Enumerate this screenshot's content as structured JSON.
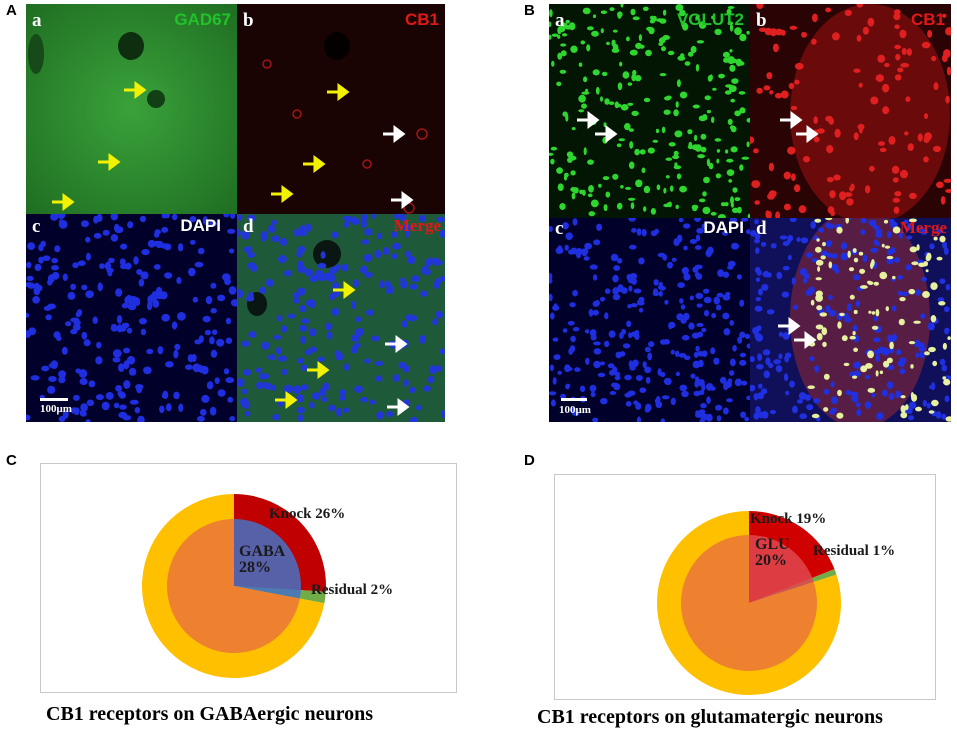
{
  "panels": {
    "A": {
      "letter": "A",
      "tiles": {
        "a": {
          "sub": "a",
          "label": "GAD67",
          "label_color": "#22c22a"
        },
        "b": {
          "sub": "b",
          "label": "CB1",
          "label_color": "#e01818"
        },
        "c": {
          "sub": "c",
          "label": "DAPI",
          "label_color": "#ffffff"
        },
        "d": {
          "sub": "d",
          "label": "Merge",
          "label_color": "#e01818"
        }
      },
      "scale_bar": "100μm"
    },
    "B": {
      "letter": "B",
      "tiles": {
        "a": {
          "sub": "a",
          "label": "VGLUT2",
          "label_color": "#22c22a"
        },
        "b": {
          "sub": "b",
          "label": "CB1",
          "label_color": "#e01818"
        },
        "c": {
          "sub": "c",
          "label": "DAPI",
          "label_color": "#ffffff"
        },
        "d": {
          "sub": "d",
          "label": "Merge",
          "label_color": "#e01818"
        }
      },
      "scale_bar": "100μm"
    },
    "C": {
      "letter": "C",
      "caption": "CB1 receptors on GABAergic neurons"
    },
    "D": {
      "letter": "D",
      "caption": "CB1 receptors on glutamatergic neurons"
    }
  },
  "chart_data": [
    {
      "type": "pie",
      "panel": "C",
      "title": "CB1 receptors on GABAergic neurons",
      "outer_ring": [
        {
          "label": "Knock",
          "value": 26,
          "display": "Knock 26%",
          "color": "#c00000"
        },
        {
          "label": "Residual",
          "value": 2,
          "display": "Residual 2%",
          "color": "#70ad47"
        },
        {
          "label": "",
          "value": 72,
          "color": "#ffc000"
        }
      ],
      "inner_pie": [
        {
          "label": "GABA",
          "value": 28,
          "display": [
            "GABA",
            "28%"
          ],
          "color": "#4472c4"
        },
        {
          "label": "",
          "value": 72,
          "color": "#ed7d31"
        }
      ]
    },
    {
      "type": "pie",
      "panel": "D",
      "title": "CB1 receptors on glutamatergic neurons",
      "outer_ring": [
        {
          "label": "Knock",
          "value": 19,
          "display": "Knock 19%",
          "color": "#d00000"
        },
        {
          "label": "Residual",
          "value": 1,
          "display": "Residual 1%",
          "color": "#70ad47"
        },
        {
          "label": "",
          "value": 80,
          "color": "#ffc000"
        }
      ],
      "inner_pie": [
        {
          "label": "GLU",
          "value": 20,
          "display": [
            "GLU",
            "20%"
          ],
          "color": "#e0474f"
        },
        {
          "label": "",
          "value": 80,
          "color": "#ed7d31"
        }
      ]
    }
  ]
}
